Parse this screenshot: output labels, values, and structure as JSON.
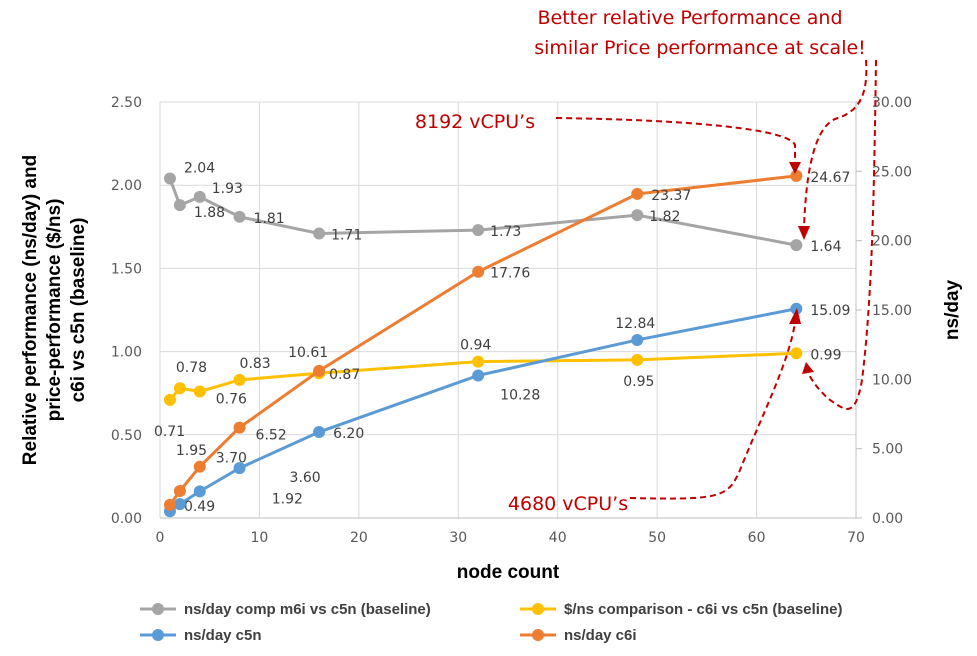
{
  "chart_data": {
    "type": "line",
    "xlabel": "node count",
    "ylabel_left": "Relative performance (ns/day) and price-performance ($/ns) c6i vs c5n (baseline)",
    "ylabel_left_lines": [
      "Relative performance (ns/day) and",
      "price-performance ($/ns)",
      "c6i vs c5n (baseline)"
    ],
    "ylabel_right": "ns/day",
    "xlim": [
      0,
      70
    ],
    "ylim_left": [
      0,
      2.5
    ],
    "ylim_right": [
      0,
      30
    ],
    "x_ticks": [
      "0",
      "10",
      "20",
      "30",
      "40",
      "50",
      "60",
      "70"
    ],
    "y_left_ticks": [
      "0.00",
      "0.50",
      "1.00",
      "1.50",
      "2.00",
      "2.50"
    ],
    "y_right_ticks": [
      "0.00",
      "5.00",
      "10.00",
      "15.00",
      "20.00",
      "25.00",
      "30.00"
    ],
    "grid": true,
    "legend_placement": "bottom",
    "x": [
      1,
      2,
      4,
      8,
      16,
      32,
      48,
      64
    ],
    "series": [
      {
        "name": "ns/day comp m6i vs c5n (baseline)",
        "axis": "left",
        "color": "#a5a5a5",
        "values": [
          2.04,
          1.88,
          1.93,
          1.81,
          1.71,
          1.73,
          1.82,
          1.64
        ],
        "labels": [
          "2.04",
          "1.88",
          "1.93",
          "1.81",
          "1.71",
          "1.73",
          "1.82",
          "1.64"
        ]
      },
      {
        "name": "$/ns comparison - c6i vs c5n (baseline)",
        "axis": "left",
        "color": "#ffc000",
        "values": [
          0.71,
          0.78,
          0.76,
          0.83,
          0.87,
          0.94,
          0.95,
          0.99
        ],
        "labels": [
          "0.71",
          "0.78",
          "0.76",
          "0.83",
          "0.87",
          "0.94",
          "0.95",
          "0.99"
        ]
      },
      {
        "name": "ns/day c5n",
        "axis": "right",
        "color": "#5b9bd5",
        "values": [
          0.49,
          1.0,
          1.92,
          3.6,
          6.2,
          10.28,
          12.84,
          15.09
        ],
        "labels": [
          "0.49",
          null,
          "1.92",
          "3.60",
          "6.20",
          "10.28",
          "12.84",
          "15.09"
        ]
      },
      {
        "name": "ns/day c6i",
        "axis": "right",
        "color": "#ed7d31",
        "values": [
          0.95,
          1.95,
          3.7,
          6.52,
          10.61,
          17.76,
          23.37,
          24.67
        ],
        "labels": [
          null,
          "1.95",
          "3.70",
          "6.52",
          "10.61",
          "17.76",
          "23.37",
          "24.67"
        ]
      }
    ],
    "annotations": {
      "title_line1": "Better relative Performance and",
      "title_line2": "similar Price performance at scale!",
      "vcpu_8192": "8192 vCPU’s",
      "vcpu_4680": "4680 vCPU’s",
      "color": "#c00000"
    }
  }
}
